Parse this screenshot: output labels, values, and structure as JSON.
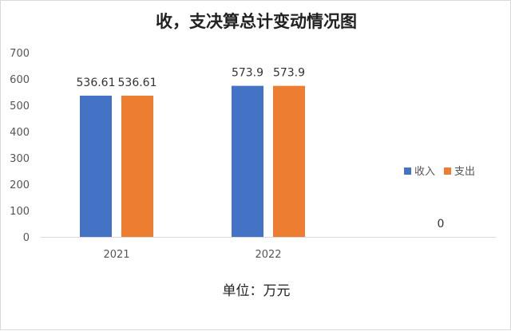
{
  "chart_data": {
    "type": "bar",
    "title": "收，支决算总计变动情况图",
    "unit_label": "单位：万元",
    "categories": [
      "2021",
      "2022",
      ""
    ],
    "series": [
      {
        "name": "收入",
        "color": "#4472C4",
        "values": [
          536.61,
          573.9,
          null
        ]
      },
      {
        "name": "支出",
        "color": "#ED7D31",
        "values": [
          536.61,
          573.9,
          0
        ]
      }
    ],
    "data_labels": [
      [
        "536.61",
        "573.9",
        null
      ],
      [
        "536.61",
        "573.9",
        "0"
      ]
    ],
    "ylim": [
      0,
      700
    ],
    "yticks": [
      0,
      100,
      200,
      300,
      400,
      500,
      600,
      700
    ],
    "grid": false,
    "legend": "right"
  }
}
